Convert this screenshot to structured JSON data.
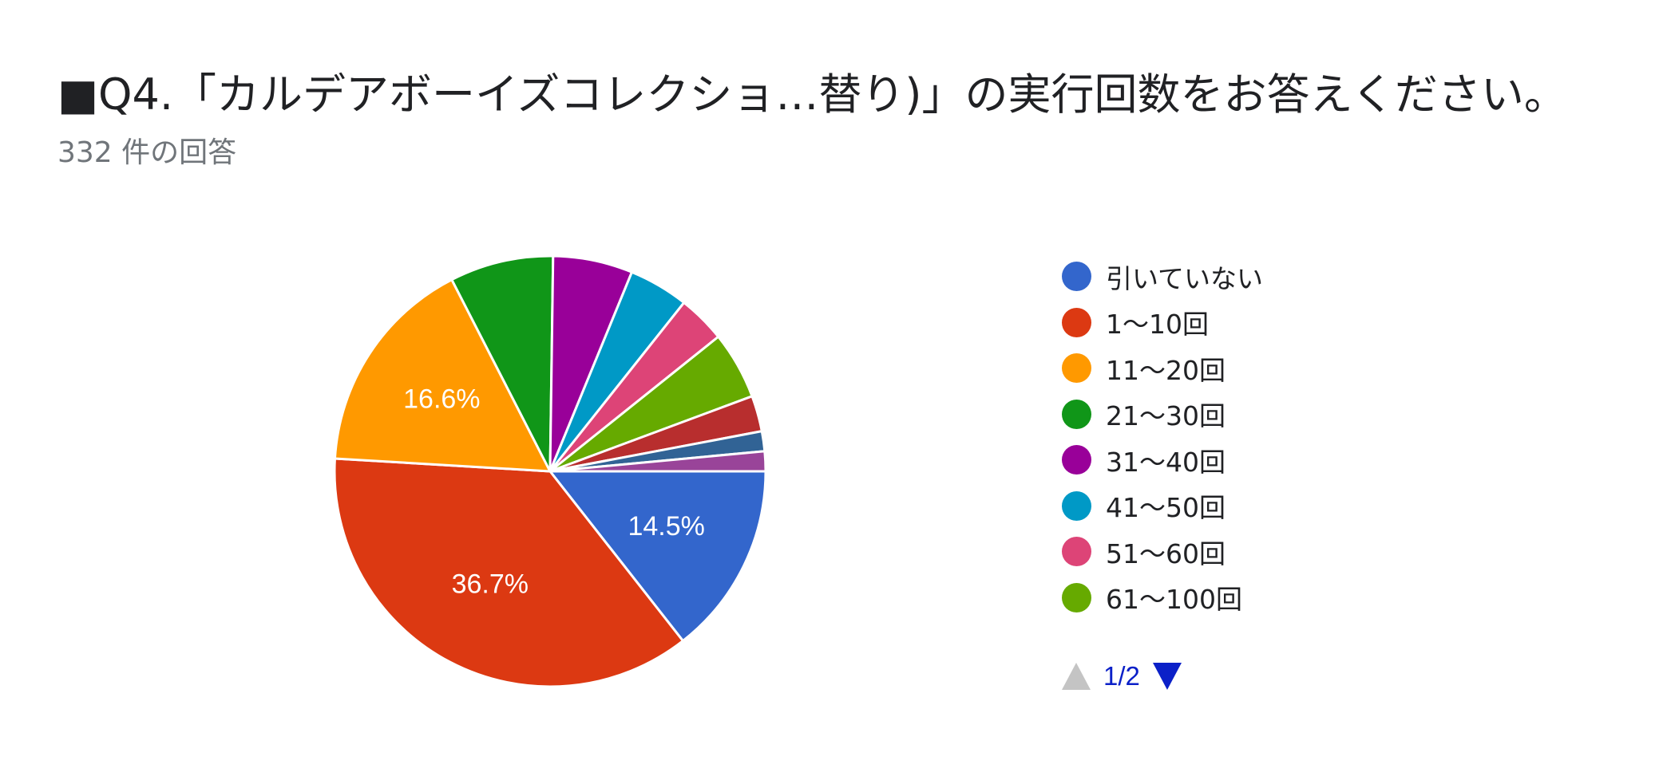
{
  "title": "■Q4.「カルデアボーイズコレクショ…替り)」の実行回数をお答えください。",
  "subtitle": "332 件の回答",
  "chart_data": {
    "type": "pie",
    "title": "■Q4.「カルデアボーイズコレクショ…替り)」の実行回数をお答えください。",
    "total_responses": 332,
    "slices": [
      {
        "name": "引いていない",
        "value": 14.5,
        "color": "#3366cc",
        "label": "14.5%"
      },
      {
        "name": "1〜10回",
        "value": 36.7,
        "color": "#dc3912",
        "label": "36.7%"
      },
      {
        "name": "11〜20回",
        "value": 16.6,
        "color": "#ff9900",
        "label": "16.6%"
      },
      {
        "name": "21〜30回",
        "value": 7.8,
        "color": "#109618",
        "label": ""
      },
      {
        "name": "31〜40回",
        "value": 6.0,
        "color": "#990099",
        "label": ""
      },
      {
        "name": "41〜50回",
        "value": 4.5,
        "color": "#0099c6",
        "label": ""
      },
      {
        "name": "51〜60回",
        "value": 3.6,
        "color": "#dd4477",
        "label": ""
      },
      {
        "name": "61〜100回",
        "value": 5.1,
        "color": "#66aa00",
        "label": ""
      },
      {
        "value": 2.7,
        "color": "#b82e2e",
        "label": ""
      },
      {
        "value": 1.5,
        "color": "#316395",
        "label": ""
      },
      {
        "value": 1.5,
        "color": "#994499",
        "label": ""
      }
    ],
    "legend_position": "right",
    "legend_page": "1/2"
  }
}
